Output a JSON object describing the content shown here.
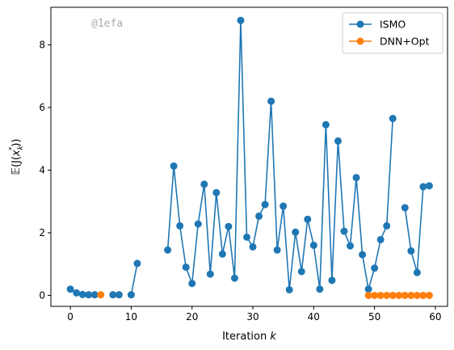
{
  "chart_data": {
    "type": "line",
    "xlabel": "Iteration k",
    "ylabel": "𝔼(J(x_k*))",
    "xlim": [
      -3.2,
      62
    ],
    "ylim": [
      -0.35,
      9.2
    ],
    "xticks": [
      0,
      10,
      20,
      30,
      40,
      50,
      60
    ],
    "yticks": [
      0,
      2,
      4,
      6,
      8
    ],
    "grid": false,
    "legend_position": "top-right",
    "watermark": "@1efa",
    "series": [
      {
        "name": "ISMO",
        "color": "#1f77b4",
        "points": [
          [
            0,
            0.2
          ],
          [
            1,
            0.08
          ],
          [
            2,
            0.03
          ],
          [
            3,
            0.02
          ],
          [
            4,
            0.02
          ],
          null,
          [
            7,
            0.02
          ],
          [
            8,
            0.02
          ],
          null,
          [
            10,
            0.02
          ],
          [
            11,
            1.02
          ],
          null,
          [
            16,
            1.45
          ],
          [
            17,
            4.13
          ],
          [
            18,
            2.22
          ],
          [
            19,
            0.9
          ],
          [
            20,
            0.38
          ],
          [
            21,
            2.28
          ],
          [
            22,
            3.55
          ],
          [
            23,
            0.68
          ],
          [
            24,
            3.28
          ],
          [
            25,
            1.32
          ],
          [
            26,
            2.2
          ],
          [
            27,
            0.55
          ],
          [
            28,
            8.78
          ],
          [
            29,
            1.86
          ],
          [
            30,
            1.55
          ],
          [
            31,
            2.53
          ],
          [
            32,
            2.9
          ],
          [
            33,
            6.2
          ],
          [
            34,
            1.45
          ],
          [
            35,
            2.85
          ],
          [
            36,
            0.18
          ],
          [
            37,
            2.02
          ],
          [
            38,
            0.76
          ],
          [
            39,
            2.43
          ],
          [
            40,
            1.6
          ],
          [
            41,
            0.2
          ],
          [
            42,
            5.45
          ],
          [
            43,
            0.48
          ],
          [
            44,
            4.93
          ],
          [
            45,
            2.05
          ],
          [
            46,
            1.58
          ],
          [
            47,
            3.76
          ],
          [
            48,
            1.3
          ],
          [
            49,
            0.2
          ],
          [
            50,
            0.87
          ],
          [
            51,
            1.78
          ],
          [
            52,
            2.22
          ],
          [
            53,
            5.65
          ],
          null,
          [
            55,
            2.8
          ],
          [
            56,
            1.42
          ],
          [
            57,
            0.73
          ],
          [
            58,
            3.47
          ],
          [
            59,
            3.5
          ]
        ]
      },
      {
        "name": "DNN+Opt",
        "color": "#ff7f0e",
        "points": [
          [
            5,
            0.02
          ],
          null,
          [
            49,
            0.0
          ],
          [
            50,
            0.0
          ],
          [
            51,
            0.0
          ],
          [
            52,
            0.0
          ],
          [
            53,
            0.0
          ],
          [
            54,
            0.0
          ],
          [
            55,
            0.0
          ],
          [
            56,
            0.0
          ],
          [
            57,
            0.0
          ],
          [
            58,
            0.0
          ],
          [
            59,
            0.0
          ]
        ]
      }
    ]
  }
}
